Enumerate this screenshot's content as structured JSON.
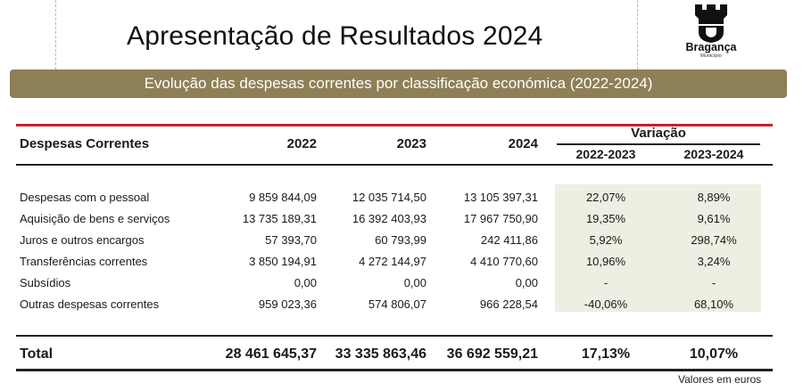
{
  "header": {
    "title": "Apresentação de Resultados 2024",
    "logo": {
      "name": "Bragança",
      "sub": "Município",
      "icon": "castle-tower-shield-icon"
    }
  },
  "banner": {
    "text": "Evolução das despesas correntes por classificação económica (2022-2024)"
  },
  "table": {
    "row_header": "Despesas Correntes",
    "years": [
      "2022",
      "2023",
      "2024"
    ],
    "variation_label": "Variação",
    "variation_periods": [
      "2022-2023",
      "2023-2024"
    ],
    "rows": [
      {
        "label": "Despesas com o pessoal",
        "y2022": "9 859 844,09",
        "y2023": "12 035 714,50",
        "y2024": "13 105 397,31",
        "v1": "22,07%",
        "v2": "8,89%"
      },
      {
        "label": "Aquisição de bens e serviços",
        "y2022": "13 735 189,31",
        "y2023": "16 392 403,93",
        "y2024": "17 967 750,90",
        "v1": "19,35%",
        "v2": "9,61%"
      },
      {
        "label": "Juros e outros encargos",
        "y2022": "57 393,70",
        "y2023": "60 793,99",
        "y2024": "242 411,86",
        "v1": "5,92%",
        "v2": "298,74%"
      },
      {
        "label": "Transferências correntes",
        "y2022": "3 850 194,91",
        "y2023": "4 272 144,97",
        "y2024": "4 410 770,60",
        "v1": "10,96%",
        "v2": "3,24%"
      },
      {
        "label": "Subsídios",
        "y2022": "0,00",
        "y2023": "0,00",
        "y2024": "0,00",
        "v1": "-",
        "v2": "-"
      },
      {
        "label": "Outras despesas correntes",
        "y2022": "959 023,36",
        "y2023": "574 806,07",
        "y2024": "966 228,54",
        "v1": "-40,06%",
        "v2": "68,10%"
      }
    ],
    "total": {
      "label": "Total",
      "y2022": "28 461 645,37",
      "y2023": "33 335 863,46",
      "y2024": "36 692 559,21",
      "v1": "17,13%",
      "v2": "10,07%"
    },
    "note": "Valores em euros"
  },
  "colors": {
    "banner": "#8d7f56",
    "accent_line": "#c0242a",
    "variation_shade": "#ecefe1"
  }
}
